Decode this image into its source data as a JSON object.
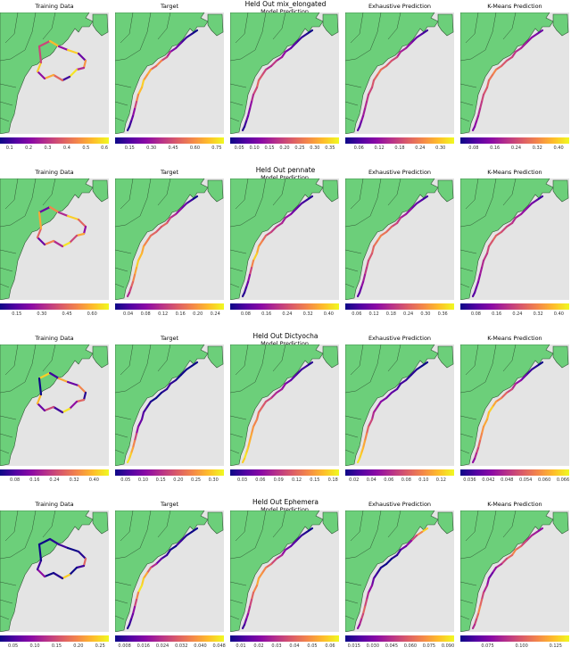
{
  "rows": [
    {
      "title": "Held Out mix_elongated",
      "panels": [
        {
          "title": "Training Data",
          "ticks": [
            "0.1",
            "0.2",
            "0.3",
            "0.4",
            "0.5",
            "0.6"
          ],
          "range": [
            0.05,
            0.62
          ]
        },
        {
          "title": "Target",
          "ticks": [
            "0.15",
            "0.30",
            "0.45",
            "0.60",
            "0.75"
          ],
          "range": [
            0.05,
            0.8
          ]
        },
        {
          "title": "Model Prediction",
          "ticks": [
            "0.05",
            "0.10",
            "0.15",
            "0.20",
            "0.25",
            "0.30",
            "0.35"
          ],
          "range": [
            0.02,
            0.38
          ]
        },
        {
          "title": "Exhaustive Prediction",
          "ticks": [
            "0.06",
            "0.12",
            "0.18",
            "0.24",
            "0.30"
          ],
          "range": [
            0.02,
            0.34
          ]
        },
        {
          "title": "K-Means Prediction",
          "ticks": [
            "0.08",
            "0.16",
            "0.24",
            "0.32",
            "0.40"
          ],
          "range": [
            0.03,
            0.44
          ]
        }
      ]
    },
    {
      "title": "Held Out pennate",
      "panels": [
        {
          "title": "Training Data",
          "ticks": [
            "0.15",
            "0.30",
            "0.45",
            "0.60"
          ],
          "range": [
            0.05,
            0.7
          ]
        },
        {
          "title": "Target",
          "ticks": [
            "0.04",
            "0.08",
            "0.12",
            "0.16",
            "0.20",
            "0.24"
          ],
          "range": [
            0.01,
            0.26
          ]
        },
        {
          "title": "Model Prediction",
          "ticks": [
            "0.08",
            "0.16",
            "0.24",
            "0.32",
            "0.40"
          ],
          "range": [
            0.02,
            0.44
          ]
        },
        {
          "title": "Exhaustive Prediction",
          "ticks": [
            "0.06",
            "0.12",
            "0.18",
            "0.24",
            "0.30",
            "0.36"
          ],
          "range": [
            0.02,
            0.4
          ]
        },
        {
          "title": "K-Means Prediction",
          "ticks": [
            "0.08",
            "0.16",
            "0.24",
            "0.32",
            "0.40"
          ],
          "range": [
            0.02,
            0.44
          ]
        }
      ]
    },
    {
      "title": "Held Out Dictyocha",
      "panels": [
        {
          "title": "Training Data",
          "ticks": [
            "0.08",
            "0.16",
            "0.24",
            "0.32",
            "0.40"
          ],
          "range": [
            0.02,
            0.46
          ]
        },
        {
          "title": "Target",
          "ticks": [
            "0.05",
            "0.10",
            "0.15",
            "0.20",
            "0.25",
            "0.30"
          ],
          "range": [
            0.02,
            0.33
          ]
        },
        {
          "title": "Model Prediction",
          "ticks": [
            "0.03",
            "0.06",
            "0.09",
            "0.12",
            "0.15",
            "0.18"
          ],
          "range": [
            0.01,
            0.19
          ]
        },
        {
          "title": "Exhaustive Prediction",
          "ticks": [
            "0.02",
            "0.04",
            "0.06",
            "0.08",
            "0.10",
            "0.12"
          ],
          "range": [
            0.01,
            0.135
          ]
        },
        {
          "title": "K-Means Prediction",
          "ticks": [
            "0.036",
            "0.042",
            "0.048",
            "0.054",
            "0.060",
            "0.066"
          ],
          "range": [
            0.033,
            0.068
          ]
        }
      ]
    },
    {
      "title": "Held Out Ephemera",
      "panels": [
        {
          "title": "Training Data",
          "ticks": [
            "0.05",
            "0.10",
            "0.15",
            "0.20",
            "0.25"
          ],
          "range": [
            0.02,
            0.27
          ]
        },
        {
          "title": "Target",
          "ticks": [
            "0.008",
            "0.016",
            "0.024",
            "0.032",
            "0.040",
            "0.048"
          ],
          "range": [
            0.004,
            0.05
          ]
        },
        {
          "title": "Model Prediction",
          "ticks": [
            "0.01",
            "0.02",
            "0.03",
            "0.04",
            "0.05",
            "0.06"
          ],
          "range": [
            0.004,
            0.065
          ]
        },
        {
          "title": "Exhaustive Prediction",
          "ticks": [
            "0.015",
            "0.030",
            "0.045",
            "0.060",
            "0.075",
            "0.090"
          ],
          "range": [
            0.008,
            0.095
          ]
        },
        {
          "title": "K-Means Prediction",
          "ticks": [
            "0.075",
            "0.100",
            "0.125"
          ],
          "range": [
            0.055,
            0.135
          ]
        }
      ]
    }
  ],
  "chart_data": {
    "type": "heatmap",
    "colormap": "plasma",
    "colors": {
      "land": "#6ccf7a",
      "ocean": "#e4e4e4",
      "border": "#2f5533"
    },
    "titles": [
      "Held Out mix_elongated",
      "Held Out pennate",
      "Held Out Dictyocha",
      "Held Out Ephemera"
    ],
    "panel_titles": [
      "Training Data",
      "Target",
      "Model Prediction",
      "Exhaustive Prediction",
      "K-Means Prediction"
    ],
    "track_value_fractions": [
      [
        [
          0.5,
          0.85,
          0.3,
          0.9,
          0.2,
          0.75,
          0.4,
          0.95,
          0.1,
          0.6,
          0.8,
          0.3,
          0.9,
          0.5
        ],
        [
          0.0,
          0.05,
          0.1,
          0.2,
          0.25,
          0.4,
          0.5,
          0.7,
          0.6,
          0.8,
          0.75,
          0.9,
          0.85,
          0.7,
          0.5,
          0.3,
          0.2,
          0.1,
          0.05,
          0.0
        ],
        [
          0.0,
          0.05,
          0.1,
          0.15,
          0.2,
          0.3,
          0.35,
          0.45,
          0.4,
          0.5,
          0.55,
          0.6,
          0.5,
          0.4,
          0.3,
          0.25,
          0.2,
          0.1,
          0.05,
          0.0
        ],
        [
          0.1,
          0.15,
          0.2,
          0.3,
          0.35,
          0.4,
          0.5,
          0.55,
          0.6,
          0.65,
          0.6,
          0.55,
          0.5,
          0.45,
          0.4,
          0.35,
          0.3,
          0.2,
          0.15,
          0.1
        ],
        [
          0.2,
          0.25,
          0.3,
          0.35,
          0.4,
          0.45,
          0.5,
          0.55,
          0.6,
          0.7,
          0.65,
          0.6,
          0.55,
          0.5,
          0.45,
          0.4,
          0.35,
          0.3,
          0.25,
          0.2
        ]
      ],
      [
        [
          0.2,
          0.7,
          0.4,
          0.9,
          0.6,
          0.3,
          0.8,
          0.5,
          0.95,
          0.4,
          0.7,
          0.2,
          0.6,
          0.8
        ],
        [
          0.0,
          0.1,
          0.2,
          0.3,
          0.4,
          0.5,
          0.6,
          0.55,
          0.6,
          0.65,
          0.7,
          0.8,
          0.85,
          0.9,
          0.8,
          0.7,
          0.6,
          0.5,
          0.4,
          0.3
        ],
        [
          0.05,
          0.1,
          0.15,
          0.2,
          0.3,
          0.35,
          0.4,
          0.45,
          0.5,
          0.6,
          0.7,
          0.8,
          0.9,
          0.7,
          0.5,
          0.3,
          0.2,
          0.1,
          0.05,
          0.0
        ],
        [
          0.1,
          0.15,
          0.2,
          0.3,
          0.35,
          0.45,
          0.5,
          0.6,
          0.65,
          0.7,
          0.65,
          0.6,
          0.55,
          0.5,
          0.45,
          0.35,
          0.3,
          0.2,
          0.15,
          0.1
        ],
        [
          0.1,
          0.2,
          0.25,
          0.3,
          0.35,
          0.4,
          0.45,
          0.5,
          0.55,
          0.6,
          0.55,
          0.5,
          0.45,
          0.4,
          0.35,
          0.3,
          0.25,
          0.2,
          0.15,
          0.1
        ]
      ],
      [
        [
          0.9,
          0.1,
          0.8,
          0.2,
          0.7,
          0.05,
          0.6,
          0.3,
          0.95,
          0.1,
          0.5,
          0.2,
          0.85,
          0.0
        ],
        [
          0.0,
          0.0,
          0.0,
          0.0,
          0.05,
          0.1,
          0.05,
          0.0,
          0.0,
          0.05,
          0.1,
          0.15,
          0.2,
          0.3,
          0.5,
          0.7,
          0.8,
          0.9,
          0.95,
          1.0
        ],
        [
          0.05,
          0.1,
          0.1,
          0.15,
          0.2,
          0.3,
          0.35,
          0.4,
          0.5,
          0.55,
          0.6,
          0.65,
          0.7,
          0.75,
          0.8,
          0.85,
          0.9,
          0.95,
          0.9,
          0.85
        ],
        [
          0.0,
          0.0,
          0.05,
          0.05,
          0.1,
          0.1,
          0.15,
          0.2,
          0.25,
          0.3,
          0.35,
          0.4,
          0.5,
          0.6,
          0.7,
          0.8,
          0.85,
          0.9,
          0.95,
          1.0
        ],
        [
          0.0,
          0.05,
          0.1,
          0.2,
          0.3,
          0.4,
          0.5,
          0.6,
          0.7,
          0.8,
          0.9,
          0.85,
          0.8,
          0.75,
          0.7,
          0.6,
          0.5,
          0.4,
          0.3,
          0.2
        ]
      ],
      [
        [
          0.0,
          0.05,
          0.1,
          0.0,
          0.05,
          0.6,
          0.1,
          0.0,
          0.9,
          0.05,
          0.0,
          0.3,
          0.1,
          0.0
        ],
        [
          0.0,
          0.0,
          0.05,
          0.1,
          0.0,
          0.05,
          0.1,
          0.2,
          0.4,
          0.6,
          0.8,
          0.9,
          0.95,
          0.7,
          0.5,
          0.3,
          0.2,
          0.1,
          0.05,
          0.0
        ],
        [
          0.0,
          0.05,
          0.1,
          0.15,
          0.2,
          0.3,
          0.4,
          0.5,
          0.6,
          0.7,
          0.75,
          0.8,
          0.7,
          0.6,
          0.5,
          0.4,
          0.3,
          0.2,
          0.1,
          0.05
        ],
        [
          0.9,
          0.7,
          0.5,
          0.3,
          0.2,
          0.1,
          0.05,
          0.0,
          0.0,
          0.05,
          0.1,
          0.2,
          0.3,
          0.4,
          0.5,
          0.6,
          0.5,
          0.4,
          0.3,
          0.2
        ],
        [
          0.3,
          0.35,
          0.4,
          0.5,
          0.6,
          0.7,
          0.6,
          0.5,
          0.4,
          0.3,
          0.2,
          0.3,
          0.4,
          0.5,
          0.6,
          0.7,
          0.6,
          0.5,
          0.4,
          0.3
        ]
      ]
    ]
  }
}
